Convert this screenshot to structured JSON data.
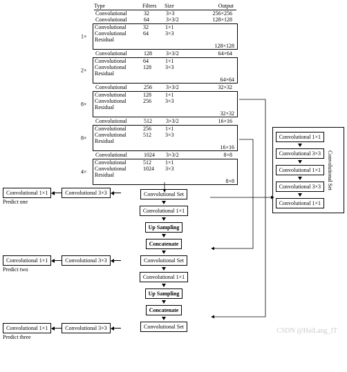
{
  "header": {
    "type": "Type",
    "filters": "Filters",
    "size": "Size",
    "output": "Output"
  },
  "rows": {
    "r0": {
      "type": "Convolutional",
      "f": "32",
      "s": "3×3",
      "o": "256×256"
    },
    "r1": {
      "type": "Convolutional",
      "f": "64",
      "s": "3×3/2",
      "o": "128×128"
    }
  },
  "blocks": [
    {
      "mult": "1×",
      "lines": [
        {
          "type": "Convolutional",
          "f": "32",
          "s": "1×1"
        },
        {
          "type": "Convolutional",
          "f": "64",
          "s": "3×3"
        },
        {
          "type": "Residual"
        }
      ],
      "foot": "128×128"
    },
    {
      "pre": {
        "type": "Convolutional",
        "f": "128",
        "s": "3×3/2",
        "o": "64×64"
      },
      "mult": "2×",
      "lines": [
        {
          "type": "Convolutional",
          "f": "64",
          "s": "1×1"
        },
        {
          "type": "Convolutional",
          "f": "128",
          "s": "3×3"
        },
        {
          "type": "Residual"
        }
      ],
      "foot": "64×64"
    },
    {
      "pre": {
        "type": "Convolutional",
        "f": "256",
        "s": "3×3/2",
        "o": "32×32"
      },
      "mult": "8×",
      "lines": [
        {
          "type": "Convolutional",
          "f": "128",
          "s": "1×1"
        },
        {
          "type": "Convolutional",
          "f": "256",
          "s": "3×3"
        },
        {
          "type": "Residual"
        }
      ],
      "foot": "32×32"
    },
    {
      "pre": {
        "type": "Convolutional",
        "f": "512",
        "s": "3×3/2",
        "o": "16×16"
      },
      "mult": "8×",
      "lines": [
        {
          "type": "Convolutional",
          "f": "256",
          "s": "1×1"
        },
        {
          "type": "Convolutional",
          "f": "512",
          "s": "3×3"
        },
        {
          "type": "Residual"
        }
      ],
      "foot": "16×16"
    },
    {
      "pre": {
        "type": "Convolutional",
        "f": "1024",
        "s": "3×3/2",
        "o": "8×8"
      },
      "mult": "4×",
      "lines": [
        {
          "type": "Convolutional",
          "f": "512",
          "s": "1×1"
        },
        {
          "type": "Convolutional",
          "f": "1024",
          "s": "3×3"
        },
        {
          "type": "Residual"
        }
      ],
      "foot": "8×8"
    }
  ],
  "flow": {
    "convset": "Convolutional Set",
    "conv1": "Convolutional 1×1",
    "conv3": "Convolutional 3×3",
    "upsamp": "Up Sampling",
    "concat": "Concatenate",
    "predict1": "Predict one",
    "predict2": "Predict two",
    "predict3": "Predict three"
  },
  "set": {
    "label": "Convolutional Set",
    "items": [
      "Convolutional 1×1",
      "Convolutional 3×3",
      "Convolutional 1×1",
      "Convolutional 3×3",
      "Convolutional 1×1"
    ]
  },
  "watermark": "CSDN @HaiLang_IT",
  "style": {
    "font": "Times New Roman",
    "fontsize_pt": 8,
    "border_color": "#000000",
    "bg": "#ffffff"
  }
}
